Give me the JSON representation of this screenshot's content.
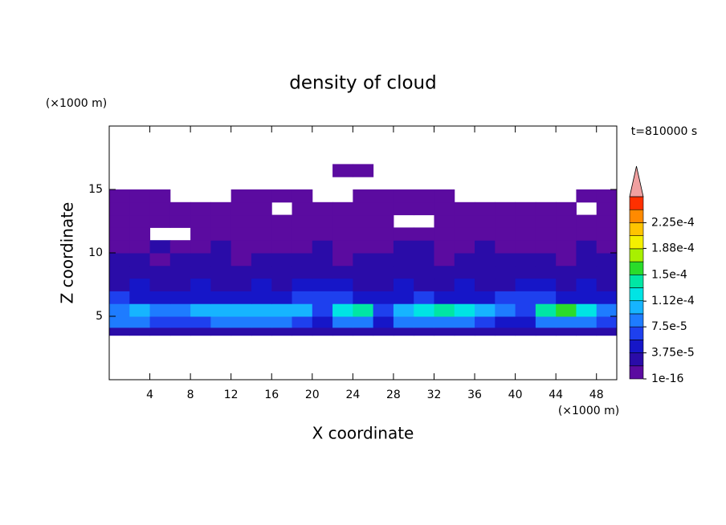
{
  "chart_data": {
    "type": "contour",
    "title": "density of cloud",
    "x_label": "X coordinate",
    "y_label": "Z coordinate",
    "x_unit": "(×1000 m)",
    "y_unit": "(×1000 m)",
    "time_label": "t=810000 s",
    "xlim": [
      0,
      50
    ],
    "ylim": [
      0,
      20
    ],
    "xticks": [
      4,
      8,
      12,
      16,
      20,
      24,
      28,
      32,
      36,
      40,
      44,
      48
    ],
    "yticks": [
      5,
      10,
      15
    ],
    "x": [
      1,
      3,
      5,
      7,
      9,
      11,
      13,
      15,
      17,
      19,
      21,
      23,
      25,
      27,
      29,
      31,
      33,
      35,
      37,
      39,
      41,
      43,
      45,
      47,
      49
    ],
    "z": [
      3.75,
      4.5,
      5.5,
      6.5,
      7.5,
      8.5,
      9.5,
      10.5,
      11.5,
      12.5,
      13.5,
      14.5,
      15.5,
      16.5
    ],
    "values": [
      [
        3e-05,
        3e-05,
        3e-05,
        3e-05,
        3e-05,
        3e-05,
        3e-05,
        3e-05,
        3e-05,
        3e-05,
        3e-05,
        3e-05,
        3e-05,
        3e-05,
        3e-05,
        3e-05,
        3e-05,
        3e-05,
        3e-05,
        3e-05,
        3e-05,
        3e-05,
        3e-05,
        3e-05,
        3e-05
      ],
      [
        8e-05,
        9e-05,
        7e-05,
        6e-05,
        7e-05,
        8e-05,
        9e-05,
        9e-05,
        8e-05,
        7e-05,
        5e-05,
        8e-05,
        9e-05,
        5e-05,
        8e-05,
        9e-05,
        9e-05,
        8e-05,
        7e-05,
        5e-05,
        4e-05,
        9e-05,
        9e-05,
        8e-05,
        7e-05
      ],
      [
        9e-05,
        0.0001,
        8e-05,
        8e-05,
        0.0001,
        0.00011,
        0.00011,
        0.00011,
        0.0001,
        0.0001,
        7e-05,
        0.00013,
        0.000145,
        6e-05,
        0.00011,
        0.00012,
        0.000145,
        0.00012,
        0.0001,
        8e-05,
        6e-05,
        0.000145,
        0.00015,
        0.00012,
        9e-05
      ],
      [
        6e-05,
        4e-05,
        5e-05,
        4e-05,
        4e-05,
        5e-05,
        4e-05,
        4e-05,
        5e-05,
        6e-05,
        7e-05,
        6e-05,
        5e-05,
        4e-05,
        5e-05,
        6e-05,
        5e-05,
        4e-05,
        5e-05,
        6e-05,
        7e-05,
        6e-05,
        5e-05,
        4e-05,
        5e-05
      ],
      [
        3e-05,
        4e-05,
        3e-05,
        3e-05,
        4e-05,
        3e-05,
        3e-05,
        4e-05,
        3e-05,
        4e-05,
        5e-05,
        4e-05,
        3e-05,
        3e-05,
        4e-05,
        3e-05,
        3e-05,
        4e-05,
        3e-05,
        3e-05,
        4e-05,
        4e-05,
        3e-05,
        4e-05,
        3e-05
      ],
      [
        2.5e-05,
        2.5e-05,
        3e-05,
        2.5e-05,
        2.5e-05,
        3e-05,
        2.5e-05,
        2e-05,
        2.5e-05,
        3e-05,
        2.5e-05,
        2.5e-05,
        3e-05,
        2.5e-05,
        2e-05,
        2.5e-05,
        3e-05,
        2.5e-05,
        2.5e-05,
        3e-05,
        2.5e-05,
        2.5e-05,
        2.5e-05,
        3e-05,
        2.5e-05
      ],
      [
        2e-05,
        2e-05,
        1.5e-05,
        2e-05,
        2e-05,
        2e-05,
        1.5e-05,
        2e-05,
        2e-05,
        2e-05,
        2e-05,
        1.5e-05,
        2e-05,
        2e-05,
        2e-05,
        2e-05,
        1.5e-05,
        2e-05,
        2e-05,
        2e-05,
        2e-05,
        2e-05,
        1.5e-05,
        2e-05,
        2e-05
      ],
      [
        1e-05,
        1e-05,
        2e-05,
        1e-05,
        1e-05,
        2e-05,
        1e-05,
        1e-05,
        1e-05,
        1e-05,
        2e-05,
        1e-05,
        1e-05,
        1e-05,
        2e-05,
        2e-05,
        1e-05,
        1e-05,
        2e-05,
        1e-05,
        1e-05,
        1e-05,
        1e-05,
        2e-05,
        1e-05
      ],
      [
        8e-06,
        8e-06,
        null,
        null,
        8e-06,
        8e-06,
        8e-06,
        8e-06,
        8e-06,
        8e-06,
        8e-06,
        8e-06,
        8e-06,
        8e-06,
        8e-06,
        8e-06,
        8e-06,
        8e-06,
        8e-06,
        8e-06,
        8e-06,
        8e-06,
        8e-06,
        8e-06,
        8e-06
      ],
      [
        5e-06,
        5e-06,
        5e-06,
        5e-06,
        5e-06,
        5e-06,
        5e-06,
        5e-06,
        5e-06,
        5e-06,
        5e-06,
        5e-06,
        5e-06,
        5e-06,
        null,
        null,
        5e-06,
        5e-06,
        5e-06,
        5e-06,
        5e-06,
        5e-06,
        5e-06,
        5e-06,
        5e-06
      ],
      [
        2e-06,
        2e-06,
        2e-06,
        2e-06,
        2e-06,
        2e-06,
        2e-06,
        2e-06,
        null,
        2e-06,
        2e-06,
        2e-06,
        2e-06,
        2e-06,
        2e-06,
        2e-06,
        2e-06,
        2e-06,
        2e-06,
        2e-06,
        2e-06,
        2e-06,
        2e-06,
        null,
        2e-06
      ],
      [
        2e-06,
        2e-06,
        2e-06,
        null,
        null,
        null,
        2e-06,
        2e-06,
        2e-06,
        2e-06,
        null,
        null,
        2e-06,
        2e-06,
        2e-06,
        2e-06,
        2e-06,
        null,
        null,
        null,
        null,
        null,
        null,
        2e-06,
        2e-06
      ],
      [
        null,
        null,
        null,
        null,
        null,
        null,
        null,
        null,
        null,
        null,
        null,
        null,
        null,
        null,
        null,
        null,
        null,
        null,
        null,
        null,
        null,
        null,
        null,
        null,
        null
      ],
      [
        null,
        null,
        null,
        null,
        null,
        null,
        null,
        null,
        null,
        null,
        null,
        1e-06,
        1e-06,
        null,
        null,
        null,
        null,
        null,
        null,
        null,
        null,
        null,
        null,
        null,
        null
      ]
    ],
    "levels": [
      1e-16,
      1.875e-05,
      3.75e-05,
      5.625e-05,
      7.5e-05,
      9.375e-05,
      0.0001125,
      0.00013125,
      0.00015,
      0.00016875,
      0.0001875,
      0.00020625,
      0.000225,
      0.00024375,
      0.0002625
    ],
    "colors": [
      "#5b0ba0",
      "#2a0ca8",
      "#1616c8",
      "#1e40ee",
      "#1e7cff",
      "#16b4ff",
      "#00e4e4",
      "#00e6a4",
      "#2adc2a",
      "#a8f000",
      "#f4f000",
      "#ffc400",
      "#ff8a00",
      "#ff3000"
    ],
    "extend_color": "#f0a0a0",
    "colorbar_ticks": [
      1e-16,
      {
        "value": 3.75e-05,
        "label": "3.75e-5"
      },
      {
        "value": 7.5e-05,
        "label": "7.5e-5"
      },
      {
        "value": 0.000112,
        "label": "1.12e-4"
      },
      {
        "value": 0.00015,
        "label": "1.5e-4"
      },
      {
        "value": 0.000188,
        "label": "1.88e-4"
      },
      {
        "value": 0.000225,
        "label": "2.25e-4"
      }
    ]
  }
}
